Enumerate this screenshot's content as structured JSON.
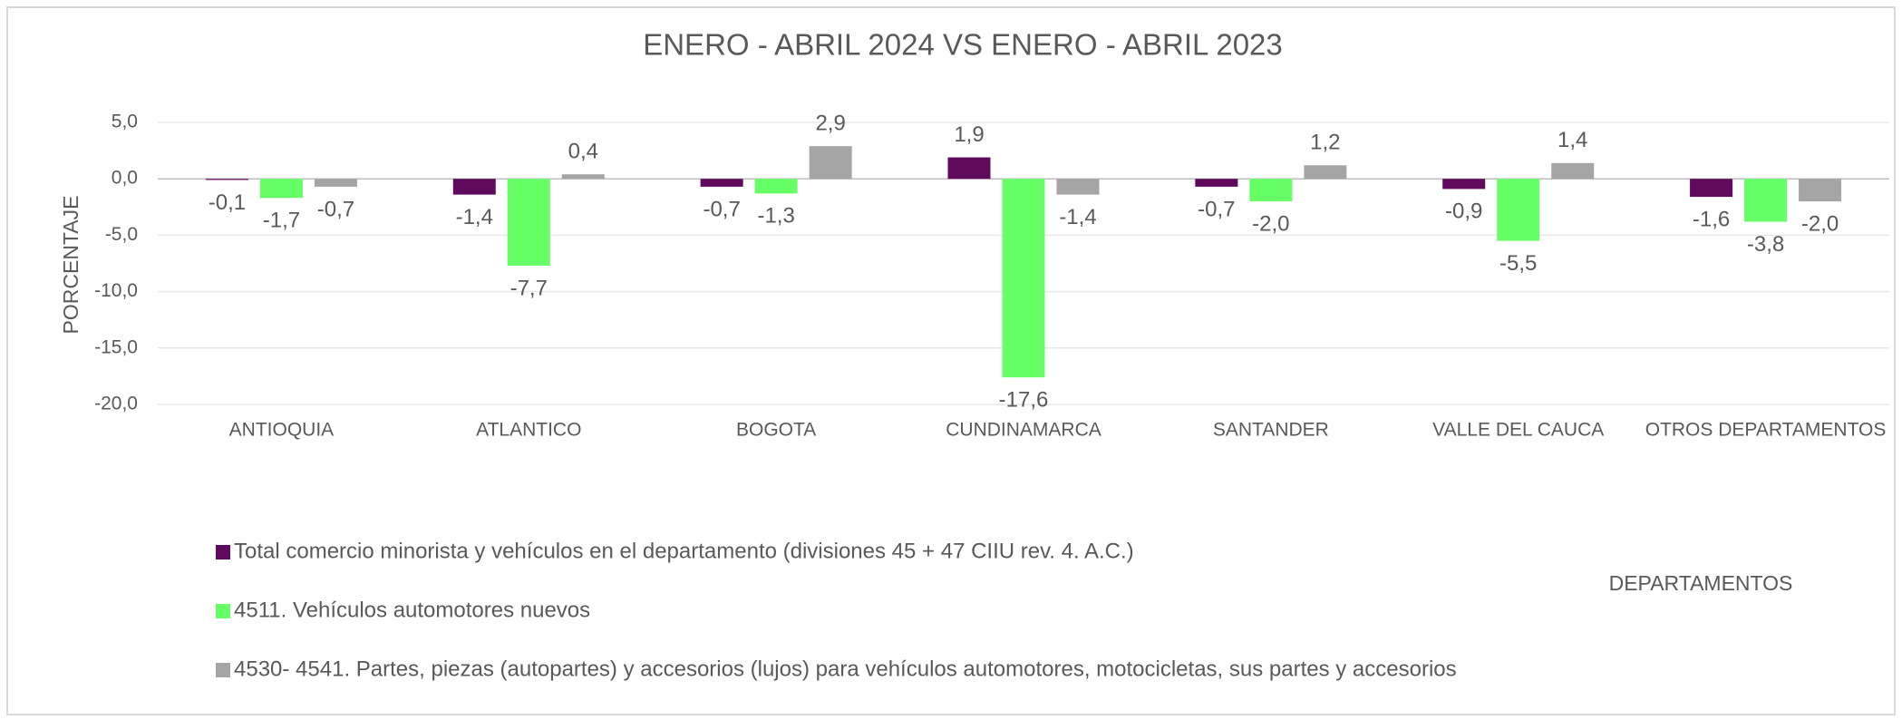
{
  "chart_data": {
    "type": "bar",
    "title": "ENERO - ABRIL 2024 VS ENERO - ABRIL 2023",
    "y_label": "PORCENTAJE",
    "x_label": "DEPARTAMENTOS",
    "categories": [
      "ANTIOQUIA",
      "ATLANTICO",
      "BOGOTA",
      "CUNDINAMARCA",
      "SANTANDER",
      "VALLE DEL CAUCA",
      "OTROS DEPARTAMENTOS"
    ],
    "series": [
      {
        "name": "Total comercio minorista y vehículos en el departamento (divisiones 45 + 47  CIIU rev. 4. A.C.)",
        "color": "#600a5e",
        "values": [
          -0.1,
          -1.4,
          -0.7,
          1.9,
          -0.7,
          -0.9,
          -1.6
        ],
        "value_labels": [
          "-0,1",
          "-1,4",
          "-0,7",
          "1,9",
          "-0,7",
          "-0,9",
          "-1,6"
        ]
      },
      {
        "name": "4511. Vehículos automotores nuevos",
        "color": "#66ff66",
        "values": [
          -1.7,
          -7.7,
          -1.3,
          -17.6,
          -2.0,
          -5.5,
          -3.8
        ],
        "value_labels": [
          "-1,7",
          "-7,7",
          "-1,3",
          "-17,6",
          "-2,0",
          "-5,5",
          "-3,8"
        ]
      },
      {
        "name": "4530- 4541. Partes, piezas (autopartes) y accesorios (lujos) para vehículos automotores, motocicletas, sus partes y accesorios",
        "color": "#a5a5a5",
        "values": [
          -0.7,
          0.4,
          2.9,
          -1.4,
          1.2,
          1.4,
          -2.0
        ],
        "value_labels": [
          "-0,7",
          "0,4",
          "2,9",
          "-1,4",
          "1,2",
          "1,4",
          "-2,0"
        ]
      }
    ],
    "ylim": [
      -20,
      5
    ],
    "yticks": [
      {
        "value": 5,
        "label": "5,0"
      },
      {
        "value": 0,
        "label": "0,0"
      },
      {
        "value": -5,
        "label": "-5,0"
      },
      {
        "value": -10,
        "label": "-10,0"
      },
      {
        "value": -15,
        "label": "-15,0"
      },
      {
        "value": -20,
        "label": "-20,0"
      }
    ],
    "grid": true
  }
}
